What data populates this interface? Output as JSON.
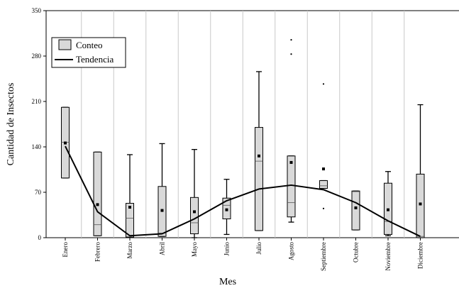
{
  "chart_data": {
    "type": "box",
    "xlabel": "Mes",
    "ylabel": "Cantidad de Insectos",
    "ylim": [
      0,
      350
    ],
    "yticks": [
      0,
      70,
      140,
      210,
      280,
      350
    ],
    "grid": "vertical",
    "legend": {
      "placement": "top-left",
      "entries": [
        {
          "label": "Conteo",
          "kind": "box"
        },
        {
          "label": "Tendencia",
          "kind": "line"
        }
      ]
    },
    "categories": [
      "Enero",
      "Febrero",
      "Marzo",
      "Abril",
      "Mayo",
      "Junio",
      "Julio",
      "Agosto",
      "Septiembre",
      "Octubre",
      "Noviembre",
      "Diciembre"
    ],
    "boxes": [
      {
        "min": 92,
        "q1": 92,
        "median": 147,
        "q3": 201,
        "max": 201,
        "mean": 146,
        "outliers": []
      },
      {
        "min": 3,
        "q1": 3,
        "median": 20,
        "q3": 132,
        "max": 132,
        "mean": 51,
        "outliers": []
      },
      {
        "min": 1,
        "q1": 1,
        "median": 30,
        "q3": 53,
        "max": 128,
        "mean": 47,
        "outliers": []
      },
      {
        "min": 2,
        "q1": 2,
        "median": 7,
        "q3": 79,
        "max": 145,
        "mean": 42,
        "outliers": []
      },
      {
        "min": 0,
        "q1": 6,
        "median": 23,
        "q3": 62,
        "max": 136,
        "mean": 40,
        "outliers": []
      },
      {
        "min": 5,
        "q1": 29,
        "median": 50,
        "q3": 61,
        "max": 90,
        "mean": 43,
        "outliers": []
      },
      {
        "min": 11,
        "q1": 11,
        "median": 118,
        "q3": 170,
        "max": 256,
        "mean": 126,
        "outliers": []
      },
      {
        "min": 24,
        "q1": 32,
        "median": 54,
        "q3": 126,
        "max": 126,
        "mean": 116,
        "outliers": [
          283,
          305
        ]
      },
      {
        "min": 76,
        "q1": 76,
        "median": 80,
        "q3": 88,
        "max": 88,
        "mean": 106,
        "outliers": [
          45,
          237
        ]
      },
      {
        "min": 12,
        "q1": 12,
        "median": 71,
        "q3": 72,
        "max": 72,
        "mean": 46,
        "outliers": []
      },
      {
        "min": 3,
        "q1": 5,
        "median": 25,
        "q3": 84,
        "max": 102,
        "mean": 43,
        "outliers": []
      },
      {
        "min": 0,
        "q1": 0,
        "median": 2,
        "q3": 98,
        "max": 205,
        "mean": 52,
        "outliers": []
      }
    ],
    "trend": {
      "name": "Tendencia",
      "values": [
        141,
        40,
        3,
        6,
        29,
        57,
        75,
        81,
        74,
        54,
        26,
        2
      ]
    }
  }
}
